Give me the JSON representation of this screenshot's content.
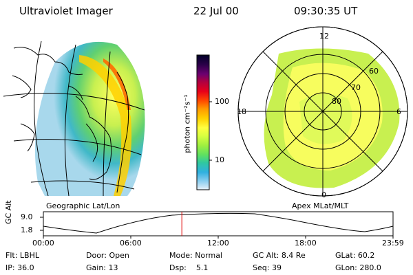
{
  "header": {
    "title": "Ultraviolet Imager",
    "date": "22 Jul 00",
    "time": "09:30:35 UT"
  },
  "left_panel": {
    "label": "Geographic Lat/Lon"
  },
  "right_panel": {
    "label": "Apex MLat/MLT",
    "mlt_labels": [
      "12",
      "18",
      "6",
      "0"
    ],
    "mlat_labels": [
      "60",
      "70",
      "80"
    ]
  },
  "colorbar": {
    "unit_label": "photon cm⁻²s⁻¹",
    "ticks": [
      "100",
      "10"
    ],
    "colors": [
      "#000028",
      "#2a0048",
      "#6a0070",
      "#b00040",
      "#e8001a",
      "#ff4a00",
      "#ff9a00",
      "#ffd000",
      "#ffff40",
      "#d8ff40",
      "#a0f040",
      "#60e060",
      "#30c8a0",
      "#30b0e0",
      "#90d0f0",
      "#e8f0f8"
    ]
  },
  "timeline": {
    "ylabel": "GC Alt",
    "y_ticks": [
      "9.0",
      "1.8"
    ],
    "x_ticks": [
      "00:00",
      "06:00",
      "12:00",
      "18:00",
      "23:59"
    ],
    "marker_time": "09:30:35",
    "marker_fraction": 0.396
  },
  "info": {
    "row1": [
      {
        "key": "Flt:",
        "value": "LBHL"
      },
      {
        "key": "Door:",
        "value": "Open"
      },
      {
        "key": "Mode:",
        "value": "Normal"
      },
      {
        "key": "GC Alt:",
        "value": "8.4 Re"
      },
      {
        "key": "GLat:",
        "value": "60.2"
      }
    ],
    "row2": [
      {
        "key": "IP:",
        "value": "36.0"
      },
      {
        "key": "Gain:",
        "value": "13"
      },
      {
        "key": "Dsp:",
        "value": "5.1"
      },
      {
        "key": "Seq:",
        "value": "39"
      },
      {
        "key": "GLon:",
        "value": "280.0"
      }
    ]
  }
}
